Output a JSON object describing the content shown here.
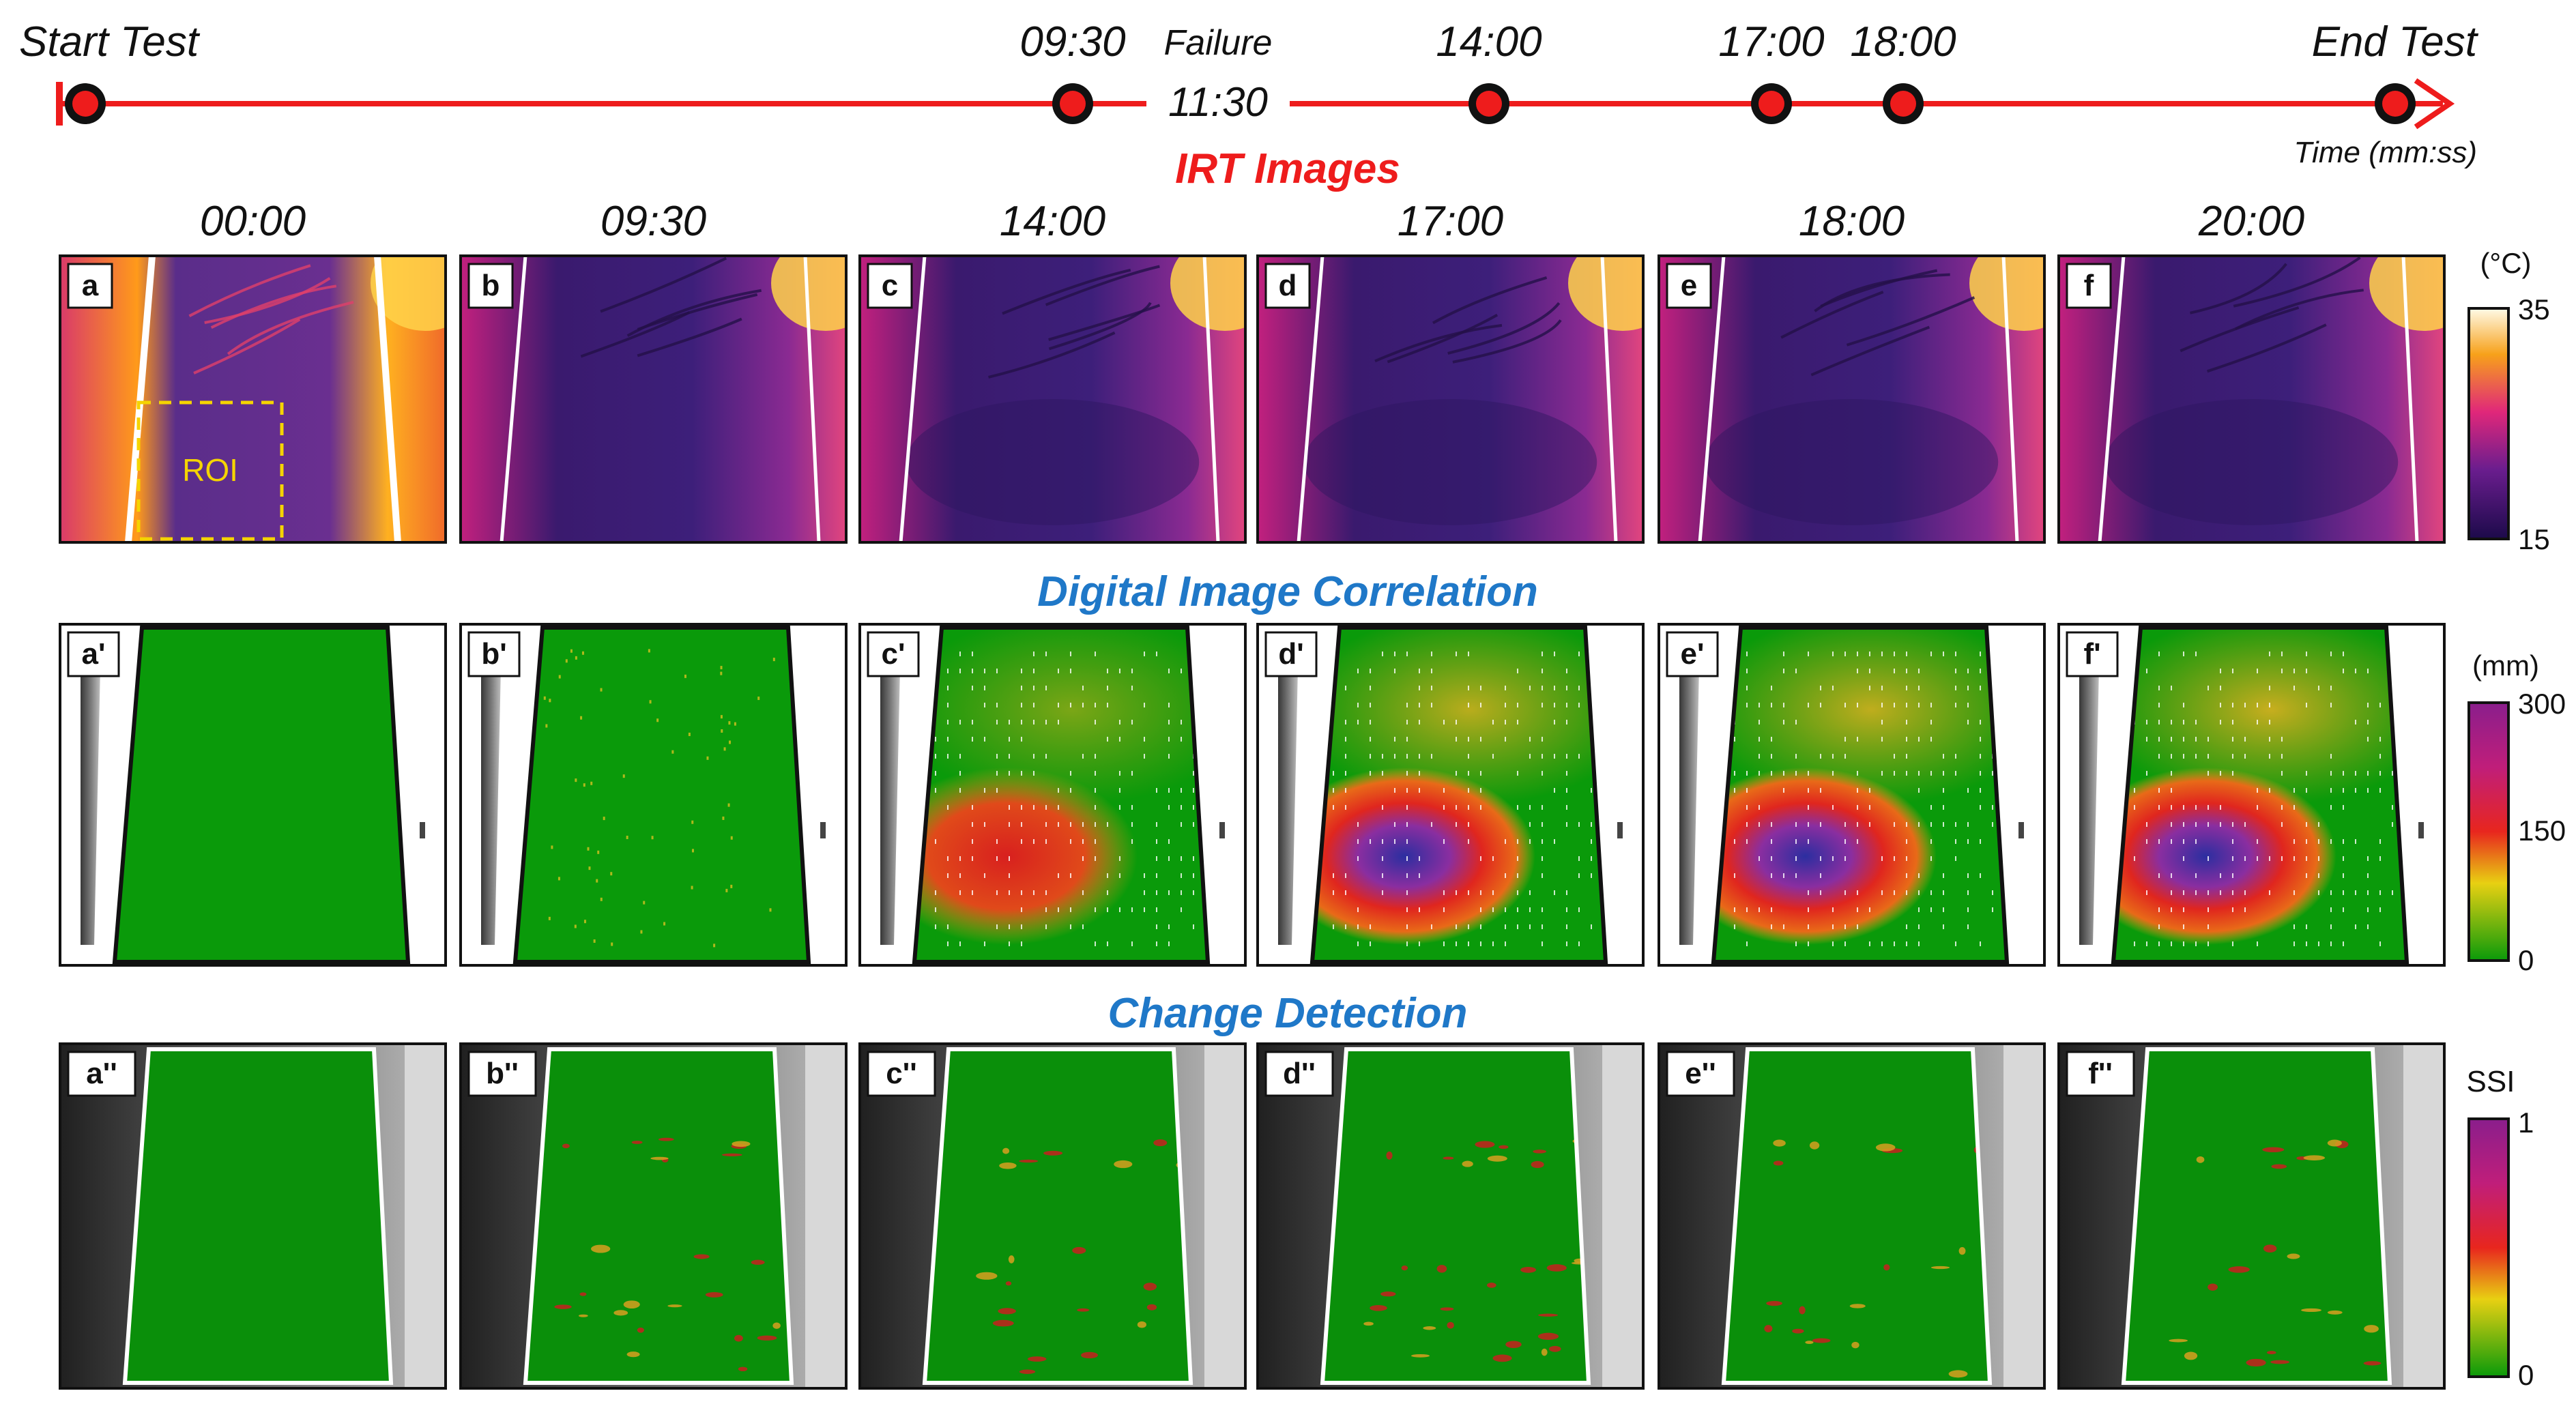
{
  "timeline": {
    "events": [
      {
        "label": "Start Test",
        "time": 0
      },
      {
        "label": "09:30",
        "time": 570
      },
      {
        "label": "14:00",
        "time": 840
      },
      {
        "label": "17:00",
        "time": 1020
      },
      {
        "label": "18:00",
        "time": 1080
      },
      {
        "label": "End Test",
        "time": 1200
      }
    ],
    "failure": {
      "label": "Failure",
      "time_label": "11:30",
      "time": 690
    },
    "axis_label": "Time (mm:ss)",
    "line_color": "#ee1c1c"
  },
  "frame_times": [
    "00:00",
    "09:30",
    "14:00",
    "17:00",
    "18:00",
    "20:00"
  ],
  "sections": {
    "irt": {
      "title": "IRT Images",
      "title_color": "#ee1c1c",
      "panel_labels": [
        "a",
        "b",
        "c",
        "d",
        "e",
        "f"
      ],
      "roi_label": "ROI",
      "scale": {
        "unit": "(°C)",
        "max": "35",
        "min": "15"
      }
    },
    "dic": {
      "title": "Digital Image Correlation",
      "title_color": "#1f78c8",
      "panel_labels": [
        "a'",
        "b'",
        "c'",
        "d'",
        "e'",
        "f'"
      ],
      "scale": {
        "unit": "(mm)",
        "max": "300",
        "mid": "150",
        "min": "0"
      }
    },
    "cd": {
      "title": "Change Detection",
      "title_color": "#1f78c8",
      "panel_labels": [
        "a''",
        "b''",
        "c''",
        "d''",
        "e''",
        "f''"
      ],
      "scale": {
        "unit": "SSI",
        "max": "1",
        "min": "0"
      }
    }
  },
  "intensity": {
    "dic": [
      0.0,
      0.05,
      0.55,
      0.85,
      0.88,
      0.92
    ],
    "cd": [
      0.0,
      0.45,
      0.35,
      0.6,
      0.3,
      0.35
    ]
  }
}
